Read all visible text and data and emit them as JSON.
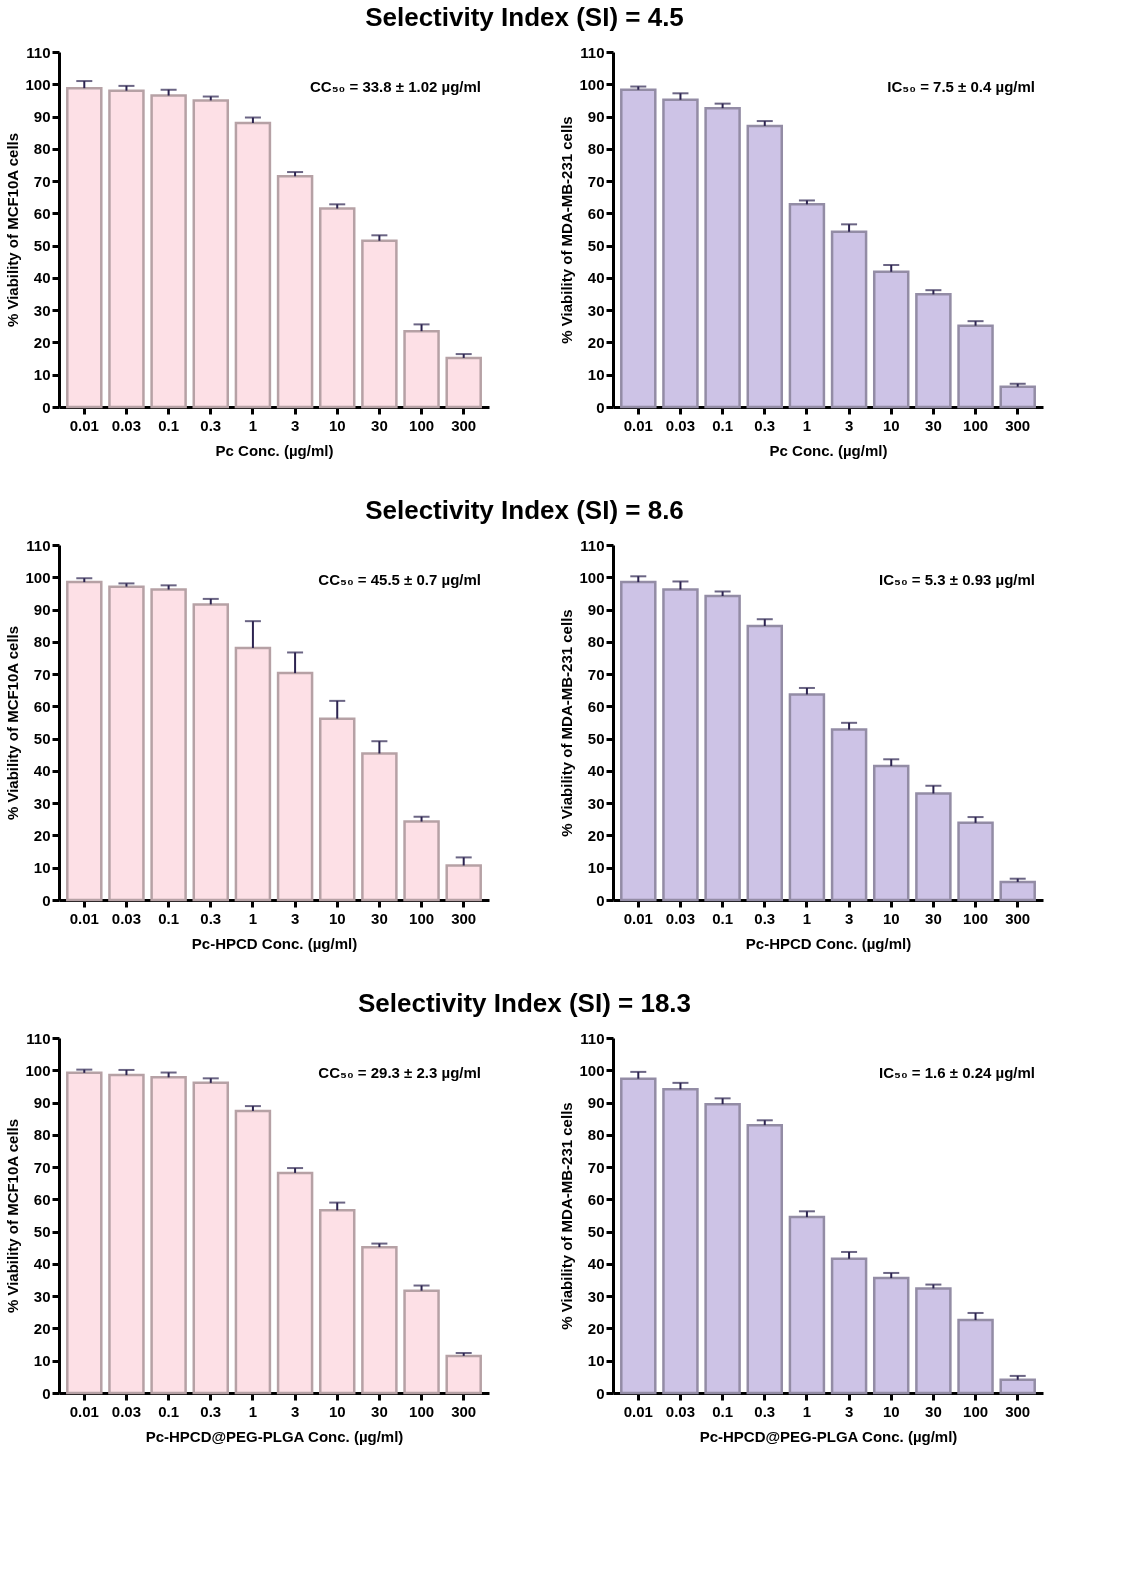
{
  "chart_data": [
    {
      "type": "bar",
      "title": "Selectivity Index (SI) = 4.5",
      "xlabel": "Pc Conc. (µg/ml)",
      "ylabel": "% Viability of MCF10A cells",
      "annotations": [
        "CC₅₀ =  33.8 ± 1.02 µg/ml"
      ],
      "categories": [
        "0.01",
        "0.03",
        "0.1",
        "0.3",
        "1",
        "3",
        "10",
        "30",
        "100",
        "300"
      ],
      "color": "#fde0e6",
      "values": [
        98.8,
        98,
        96.5,
        95,
        88,
        71.5,
        61.5,
        51.5,
        23.5,
        15.2
      ],
      "errors": [
        [
          98.8,
          101
        ],
        [
          98,
          99.5
        ],
        [
          96.5,
          98.3
        ],
        [
          95,
          96.2
        ],
        [
          88,
          89.7
        ],
        [
          71.5,
          72.8
        ],
        [
          61.5,
          62.8
        ],
        [
          51.5,
          53.2
        ],
        [
          23.5,
          25.6
        ],
        [
          15.2,
          16.4
        ]
      ],
      "ylim": [
        0,
        110
      ],
      "yticks": [
        0,
        10,
        20,
        30,
        40,
        50,
        60,
        70,
        80,
        90,
        100,
        110
      ],
      "grid": false
    },
    {
      "type": "bar",
      "xlabel": "Pc Conc. (µg/ml)",
      "ylabel": "% Viability of MDA-MB-231 cells",
      "annotations": [
        "IC₅₀ = 7.5 ± 0.4 µg/ml"
      ],
      "categories": [
        "0.01",
        "0.03",
        "0.1",
        "0.3",
        "1",
        "3",
        "10",
        "30",
        "100",
        "300"
      ],
      "color": "#cdc3e6",
      "values": [
        98.3,
        95.2,
        92.6,
        87.1,
        62.8,
        54.3,
        41.9,
        34.9,
        25.2,
        6.3
      ],
      "errors": [
        [
          98.3,
          99.3
        ],
        [
          95.2,
          97.2
        ],
        [
          92.6,
          94
        ],
        [
          87.1,
          88.6
        ],
        [
          62.8,
          64
        ],
        [
          54.3,
          56.6
        ],
        [
          41.9,
          44
        ],
        [
          34.9,
          36.2
        ],
        [
          25.2,
          26.6
        ],
        [
          6.3,
          7.2
        ]
      ],
      "ylim": [
        0,
        110
      ],
      "yticks": [
        0,
        10,
        20,
        30,
        40,
        50,
        60,
        70,
        80,
        90,
        100,
        110
      ],
      "grid": false
    },
    {
      "type": "bar",
      "title": "Selectivity Index (SI) = 8.6",
      "xlabel": "Pc-HPCD Conc. (µg/ml)",
      "ylabel": "% Viability of MCF10A cells",
      "annotations": [
        "CC₅₀ =  45.5 ± 0.7 µg/ml"
      ],
      "categories": [
        "0.01",
        "0.03",
        "0.1",
        "0.3",
        "1",
        "3",
        "10",
        "30",
        "100",
        "300"
      ],
      "color": "#fde0e6",
      "values": [
        98.5,
        97.1,
        96.2,
        91.6,
        78.1,
        70.3,
        56.2,
        45.4,
        24.3,
        10.7
      ],
      "errors": [
        [
          98.5,
          99.7
        ],
        [
          97.1,
          98.1
        ],
        [
          96.2,
          97.5
        ],
        [
          91.6,
          93.3
        ],
        [
          78.1,
          86.4
        ],
        [
          70.3,
          76.7
        ],
        [
          56.2,
          61.7
        ],
        [
          45.4,
          49.2
        ],
        [
          24.3,
          25.8
        ],
        [
          10.7,
          13.2
        ]
      ],
      "ylim": [
        0,
        110
      ],
      "yticks": [
        0,
        10,
        20,
        30,
        40,
        50,
        60,
        70,
        80,
        90,
        100,
        110
      ],
      "grid": false
    },
    {
      "type": "bar",
      "xlabel": "Pc-HPCD Conc. (µg/ml)",
      "ylabel": "% Viability of MDA-MB-231 cells",
      "annotations": [
        "IC₅₀ = 5.3 ± 0.93 µg/ml"
      ],
      "categories": [
        "0.01",
        "0.03",
        "0.1",
        "0.3",
        "1",
        "3",
        "10",
        "30",
        "100",
        "300"
      ],
      "color": "#cdc3e6",
      "values": [
        98.5,
        96.2,
        94.2,
        84.9,
        63.7,
        52.8,
        41.5,
        33,
        23.9,
        5.6
      ],
      "errors": [
        [
          98.5,
          100.3
        ],
        [
          96.2,
          98.7
        ],
        [
          94.2,
          95.6
        ],
        [
          84.9,
          87
        ],
        [
          63.7,
          65.7
        ],
        [
          52.8,
          54.9
        ],
        [
          41.5,
          43.6
        ],
        [
          33,
          35.4
        ],
        [
          23.9,
          25.7
        ],
        [
          5.6,
          6.6
        ]
      ],
      "ylim": [
        0,
        110
      ],
      "yticks": [
        0,
        10,
        20,
        30,
        40,
        50,
        60,
        70,
        80,
        90,
        100,
        110
      ],
      "grid": false
    },
    {
      "type": "bar",
      "title": "Selectivity Index (SI) = 18.3",
      "xlabel": "Pc-HPCD@PEG-PLGA Conc. (µg/ml)",
      "ylabel": "% Viability of MCF10A cells",
      "annotations": [
        "CC₅₀ =  29.3 ± 2.3 µg/ml"
      ],
      "categories": [
        "0.01",
        "0.03",
        "0.1",
        "0.3",
        "1",
        "3",
        "10",
        "30",
        "100",
        "300"
      ],
      "color": "#fde0e6",
      "values": [
        99.2,
        98.5,
        97.8,
        96.1,
        87.4,
        68.2,
        56.6,
        45.2,
        31.7,
        11.5
      ],
      "errors": [
        [
          99.2,
          100.2
        ],
        [
          98.5,
          100.1
        ],
        [
          97.8,
          99.3
        ],
        [
          96.1,
          97.5
        ],
        [
          87.4,
          88.9
        ],
        [
          68.2,
          69.7
        ],
        [
          56.6,
          59
        ],
        [
          45.2,
          46.3
        ],
        [
          31.7,
          33.3
        ],
        [
          11.5,
          12.4
        ]
      ],
      "ylim": [
        0,
        110
      ],
      "yticks": [
        0,
        10,
        20,
        30,
        40,
        50,
        60,
        70,
        80,
        90,
        100,
        110
      ],
      "grid": false
    },
    {
      "type": "bar",
      "xlabel": "Pc-HPCD@PEG-PLGA Conc. (µg/ml)",
      "ylabel": "% Viability of MDA-MB-231 cells",
      "annotations": [
        "IC₅₀ = 1.6 ± 0.24  µg/ml"
      ],
      "categories": [
        "0.01",
        "0.03",
        "0.1",
        "0.3",
        "1",
        "3",
        "10",
        "30",
        "100",
        "300"
      ],
      "color": "#cdc3e6",
      "values": [
        97.4,
        94.1,
        89.5,
        83,
        54.5,
        41.6,
        35.6,
        32.4,
        22.6,
        4.1
      ],
      "errors": [
        [
          97.4,
          99.5
        ],
        [
          94.1,
          96.1
        ],
        [
          89.5,
          91.3
        ],
        [
          83,
          84.5
        ],
        [
          54.5,
          56.3
        ],
        [
          41.6,
          43.7
        ],
        [
          35.6,
          37.2
        ],
        [
          32.4,
          33.6
        ],
        [
          22.6,
          24.8
        ],
        [
          4.1,
          5.3
        ]
      ],
      "ylim": [
        0,
        110
      ],
      "yticks": [
        0,
        10,
        20,
        30,
        40,
        50,
        60,
        70,
        80,
        90,
        100,
        110
      ],
      "grid": false
    }
  ]
}
